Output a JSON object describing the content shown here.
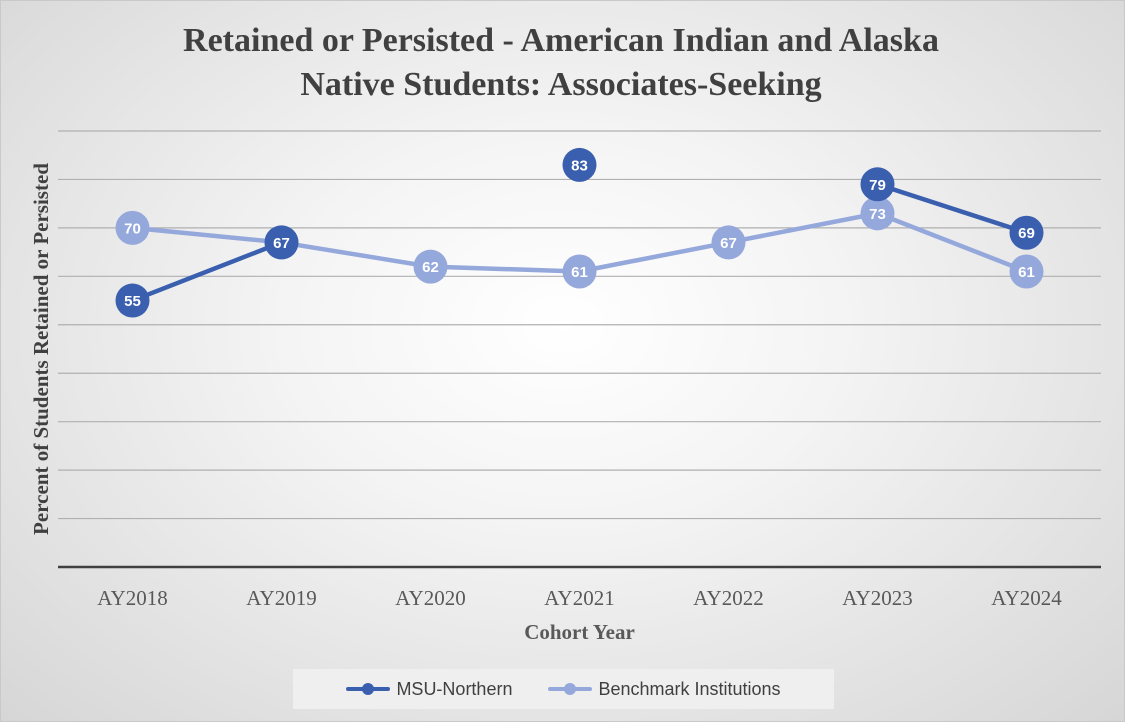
{
  "chart_data": {
    "type": "line",
    "title_lines": [
      "Retained or Persisted - American Indian and Alaska",
      "Native Students: Associates-Seeking"
    ],
    "xlabel": "Cohort Year",
    "ylabel": "Percent of Students Retained or Persisted",
    "categories": [
      "AY2018",
      "AY2019",
      "AY2020",
      "AY2021",
      "AY2022",
      "AY2023",
      "AY2024"
    ],
    "ylim": [
      0,
      90
    ],
    "y_gridline_step": 10,
    "grid": true,
    "legend_position": "bottom",
    "series": [
      {
        "name": "MSU-Northern",
        "color": "#3a5fae",
        "values": [
          55,
          67,
          null,
          83,
          null,
          79,
          69
        ]
      },
      {
        "name": "Benchmark Institutions",
        "color": "#95a8dc",
        "values": [
          70,
          67,
          62,
          61,
          67,
          73,
          61
        ]
      }
    ]
  }
}
